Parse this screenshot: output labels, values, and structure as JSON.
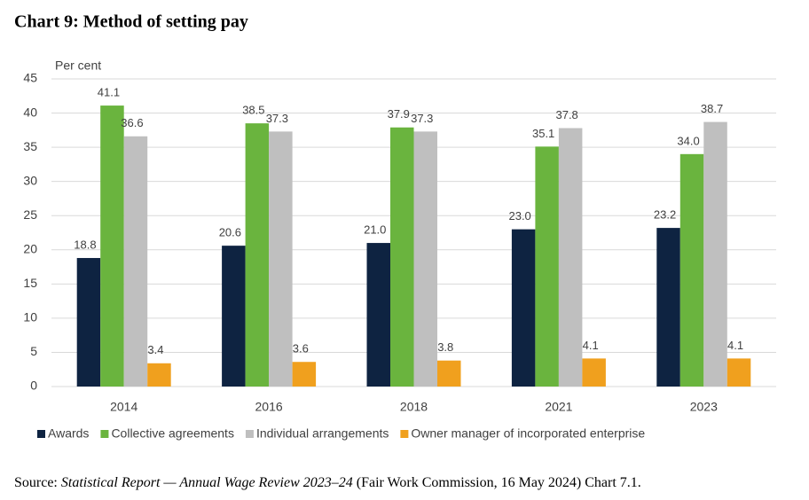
{
  "chart_data": {
    "type": "bar",
    "title": "Chart 9: Method of setting pay",
    "y_label": "Per cent",
    "categories": [
      "2014",
      "2016",
      "2018",
      "2021",
      "2023"
    ],
    "series": [
      {
        "name": "Awards",
        "color": "#0e2341",
        "values": [
          18.8,
          20.6,
          21.0,
          23.0,
          23.2
        ],
        "value_labels": [
          "18.8",
          "20.6",
          "21.0",
          "23.0",
          "23.2"
        ]
      },
      {
        "name": "Collective agreements",
        "color": "#6ab43e",
        "values": [
          41.1,
          38.5,
          37.9,
          35.1,
          34.0
        ],
        "value_labels": [
          "41.1",
          "38.5",
          "37.9",
          "35.1",
          "34.0"
        ]
      },
      {
        "name": "Individual arrangements",
        "color": "#bfbfbf",
        "values": [
          36.6,
          37.3,
          37.3,
          37.8,
          38.7
        ],
        "value_labels": [
          "36.6",
          "37.3",
          "37.3",
          "37.8",
          "38.7"
        ]
      },
      {
        "name": "Owner manager of incorporated enterprise",
        "color": "#f0a01e",
        "values": [
          3.4,
          3.6,
          3.8,
          4.1,
          4.1
        ],
        "value_labels": [
          "3.4",
          "3.6",
          "3.8",
          "4.1",
          "4.1"
        ]
      }
    ],
    "ylim": [
      0,
      45
    ],
    "yticks": [
      0,
      5,
      10,
      15,
      20,
      25,
      30,
      35,
      40,
      45
    ],
    "grid": true,
    "source": {
      "prefix": "Source: ",
      "title": "Statistical Report — Annual Wage Review 2023–24",
      "suffix": " (Fair Work Commission, 16 May 2024) Chart 7.1."
    }
  }
}
